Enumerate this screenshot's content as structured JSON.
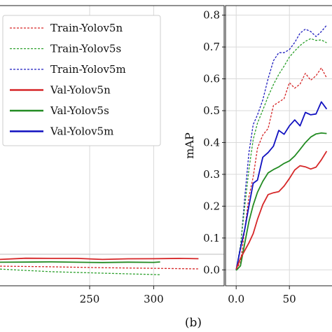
{
  "chart_data": [
    {
      "panel": "left",
      "type": "line",
      "title": "",
      "xlabel": "",
      "ylabel": "",
      "x_ticks": [
        250,
        300
      ],
      "xlim": [
        180,
        355
      ],
      "ylim": [
        0.0,
        1.0
      ],
      "grid": true,
      "legend": {
        "placement": "top-right",
        "entries": [
          {
            "name": "Train-Yolov5n",
            "color": "#d62728",
            "style": "dashed"
          },
          {
            "name": "Train-Yolov5s",
            "color": "#2ca02c",
            "style": "dashed"
          },
          {
            "name": "Train-Yolov5m",
            "color": "#1f1fbf",
            "style": "dashed"
          },
          {
            "name": "Val-Yolov5n",
            "color": "#d62728",
            "style": "solid"
          },
          {
            "name": "Val-Yolov5s",
            "color": "#228b22",
            "style": "solid"
          },
          {
            "name": "Val-Yolov5m",
            "color": "#1010c0",
            "style": "solid"
          }
        ]
      },
      "series": [
        {
          "name": "Val-Yolov5n",
          "color": "#d62728",
          "style": "solid",
          "x": [
            180,
            200,
            220,
            240,
            260,
            280,
            300,
            320,
            335
          ],
          "y": [
            0.095,
            0.097,
            0.096,
            0.098,
            0.096,
            0.097,
            0.095,
            0.096,
            0.097
          ]
        },
        {
          "name": "Val-Yolov5s",
          "color": "#228b22",
          "style": "solid",
          "x": [
            180,
            200,
            220,
            240,
            260,
            280,
            300,
            305
          ],
          "y": [
            0.085,
            0.086,
            0.087,
            0.086,
            0.085,
            0.086,
            0.085,
            0.086
          ]
        },
        {
          "name": "Train-Yolov5n",
          "color": "#d62728",
          "style": "dashed",
          "x": [
            180,
            220,
            260,
            300,
            335
          ],
          "y": [
            0.068,
            0.066,
            0.064,
            0.063,
            0.062
          ]
        },
        {
          "name": "Train-Yolov5s",
          "color": "#2ca02c",
          "style": "dashed",
          "x": [
            180,
            220,
            260,
            305
          ],
          "y": [
            0.06,
            0.052,
            0.044,
            0.038
          ]
        }
      ]
    },
    {
      "panel": "right",
      "label": "(b)",
      "type": "line",
      "title": "",
      "xlabel": "",
      "ylabel": "mAP",
      "x_ticks": [
        0,
        50
      ],
      "y_ticks": [
        0.0,
        0.1,
        0.2,
        0.3,
        0.4,
        0.5,
        0.6,
        0.7,
        0.8
      ],
      "xlim": [
        -10,
        90
      ],
      "ylim": [
        -0.05,
        0.83
      ],
      "grid": true,
      "series": [
        {
          "name": "Train-Yolov5m",
          "color": "#1f1fbf",
          "style": "dashed",
          "x": [
            0,
            4,
            8,
            12,
            16,
            20,
            25,
            30,
            35,
            40,
            45,
            50,
            55,
            60,
            65,
            70,
            75,
            80,
            85
          ],
          "y": [
            0.0,
            0.08,
            0.22,
            0.35,
            0.45,
            0.5,
            0.55,
            0.6,
            0.64,
            0.67,
            0.69,
            0.71,
            0.72,
            0.73,
            0.74,
            0.75,
            0.75,
            0.76,
            0.76
          ]
        },
        {
          "name": "Train-Yolov5s",
          "color": "#2ca02c",
          "style": "dashed",
          "x": [
            0,
            4,
            8,
            12,
            16,
            20,
            25,
            30,
            35,
            40,
            45,
            50,
            55,
            60,
            65,
            70,
            75,
            80,
            85
          ],
          "y": [
            0.0,
            0.06,
            0.18,
            0.3,
            0.4,
            0.46,
            0.51,
            0.56,
            0.6,
            0.63,
            0.65,
            0.67,
            0.68,
            0.69,
            0.7,
            0.71,
            0.71,
            0.72,
            0.72
          ]
        },
        {
          "name": "Train-Yolov5n",
          "color": "#d62728",
          "style": "dashed",
          "x": [
            0,
            4,
            8,
            12,
            16,
            20,
            25,
            30,
            35,
            40,
            45,
            50,
            55,
            60,
            65,
            70,
            75,
            80,
            85
          ],
          "y": [
            0.0,
            0.04,
            0.12,
            0.22,
            0.31,
            0.37,
            0.42,
            0.46,
            0.5,
            0.53,
            0.55,
            0.57,
            0.58,
            0.59,
            0.6,
            0.61,
            0.61,
            0.62,
            0.62
          ]
        },
        {
          "name": "Val-Yolov5m",
          "color": "#1010c0",
          "style": "solid",
          "x": [
            0,
            4,
            8,
            12,
            16,
            20,
            25,
            30,
            35,
            40,
            45,
            50,
            55,
            60,
            65,
            70,
            75,
            80,
            85
          ],
          "y": [
            0.0,
            0.05,
            0.14,
            0.2,
            0.26,
            0.3,
            0.34,
            0.37,
            0.4,
            0.42,
            0.44,
            0.45,
            0.46,
            0.47,
            0.48,
            0.49,
            0.5,
            0.51,
            0.52
          ]
        },
        {
          "name": "Val-Yolov5s",
          "color": "#228b22",
          "style": "solid",
          "x": [
            0,
            4,
            8,
            12,
            16,
            20,
            25,
            30,
            35,
            40,
            45,
            50,
            55,
            60,
            65,
            70,
            75,
            80,
            85
          ],
          "y": [
            0.0,
            0.03,
            0.1,
            0.16,
            0.2,
            0.23,
            0.26,
            0.29,
            0.31,
            0.33,
            0.35,
            0.36,
            0.37,
            0.38,
            0.39,
            0.4,
            0.41,
            0.42,
            0.43
          ]
        },
        {
          "name": "Val-Yolov5n",
          "color": "#d62728",
          "style": "solid",
          "x": [
            0,
            4,
            8,
            12,
            16,
            20,
            25,
            30,
            35,
            40,
            45,
            50,
            55,
            60,
            65,
            70,
            75,
            80,
            85
          ],
          "y": [
            0.0,
            0.02,
            0.06,
            0.1,
            0.13,
            0.16,
            0.19,
            0.22,
            0.24,
            0.26,
            0.28,
            0.29,
            0.3,
            0.31,
            0.32,
            0.33,
            0.34,
            0.35,
            0.36
          ]
        }
      ]
    }
  ]
}
